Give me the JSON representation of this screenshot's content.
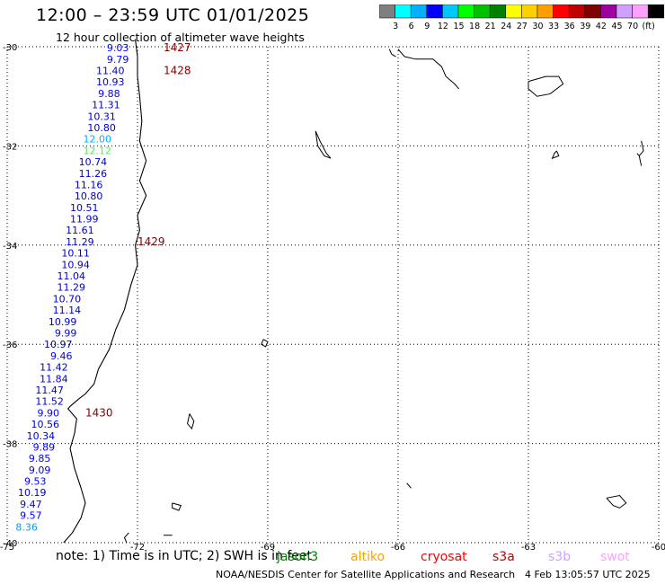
{
  "header": {
    "title": "12:00 – 23:59 UTC 01/01/2025",
    "subtitle": "12 hour collection of altimeter wave heights"
  },
  "color_scale": {
    "colors": [
      "#7f7f7f",
      "#00ffff",
      "#00b0ff",
      "#0000ff",
      "#00c8ff",
      "#00ff00",
      "#00c000",
      "#008000",
      "#ffff00",
      "#ffd000",
      "#ffa000",
      "#ff0000",
      "#c00000",
      "#800000",
      "#a000a0",
      "#d0a0ff",
      "#ffa0ff",
      "#000000"
    ],
    "labels": [
      "3",
      "6",
      "9",
      "12",
      "15",
      "18",
      "21",
      "24",
      "27",
      "30",
      "33",
      "36",
      "39",
      "42",
      "45",
      "70",
      "(ft)"
    ]
  },
  "map": {
    "lat_labels": [
      "-30",
      "-32",
      "-34",
      "-36",
      "-38",
      "-40"
    ],
    "lon_labels": [
      "-75",
      "-72",
      "-69",
      "-66",
      "-63",
      "-60"
    ]
  },
  "chart_data": {
    "type": "scatter",
    "title": "12:00 – 23:59 UTC 01/01/2025",
    "subtitle": "12 hour collection of altimeter wave heights",
    "xlim": [
      -75,
      -60
    ],
    "ylim": [
      -40,
      -30
    ],
    "x_ticks": [
      -75,
      -72,
      -69,
      -66,
      -63,
      -60
    ],
    "y_ticks": [
      -30,
      -32,
      -34,
      -36,
      -38,
      -40
    ],
    "grid": true,
    "units": "ft",
    "points": [
      {
        "lon": -72.2,
        "lat": -30.02,
        "value": "9.03",
        "color": "#0000ff"
      },
      {
        "lon": -72.2,
        "lat": -30.25,
        "value": "9.79",
        "color": "#0000ff"
      },
      {
        "lon": -72.3,
        "lat": -30.48,
        "value": "11.40",
        "color": "#0000cc"
      },
      {
        "lon": -72.3,
        "lat": -30.71,
        "value": "10.93",
        "color": "#0000cc"
      },
      {
        "lon": -72.4,
        "lat": -30.94,
        "value": "9.88",
        "color": "#0000ff"
      },
      {
        "lon": -72.4,
        "lat": -31.17,
        "value": "11.31",
        "color": "#0000cc"
      },
      {
        "lon": -72.5,
        "lat": -31.4,
        "value": "10.31",
        "color": "#0000cc"
      },
      {
        "lon": -72.5,
        "lat": -31.63,
        "value": "10.80",
        "color": "#0000cc"
      },
      {
        "lon": -72.6,
        "lat": -31.86,
        "value": "12.00",
        "color": "#00b0ff"
      },
      {
        "lon": -72.6,
        "lat": -32.09,
        "value": "12.12",
        "color": "#66dd66"
      },
      {
        "lon": -72.7,
        "lat": -32.32,
        "value": "10.74",
        "color": "#0000cc"
      },
      {
        "lon": -72.7,
        "lat": -32.55,
        "value": "11.26",
        "color": "#0000cc"
      },
      {
        "lon": -72.8,
        "lat": -32.78,
        "value": "11.16",
        "color": "#0000cc"
      },
      {
        "lon": -72.8,
        "lat": -33.01,
        "value": "10.80",
        "color": "#0000cc"
      },
      {
        "lon": -72.9,
        "lat": -33.24,
        "value": "10.51",
        "color": "#0000cc"
      },
      {
        "lon": -72.9,
        "lat": -33.47,
        "value": "11.99",
        "color": "#0000cc"
      },
      {
        "lon": -73.0,
        "lat": -33.7,
        "value": "11.61",
        "color": "#0000cc"
      },
      {
        "lon": -73.0,
        "lat": -33.93,
        "value": "11.29",
        "color": "#0000cc"
      },
      {
        "lon": -73.1,
        "lat": -34.16,
        "value": "10.11",
        "color": "#0000cc"
      },
      {
        "lon": -73.1,
        "lat": -34.39,
        "value": "10.94",
        "color": "#0000cc"
      },
      {
        "lon": -73.2,
        "lat": -34.62,
        "value": "11.04",
        "color": "#0000cc"
      },
      {
        "lon": -73.2,
        "lat": -34.85,
        "value": "11.29",
        "color": "#0000cc"
      },
      {
        "lon": -73.3,
        "lat": -35.08,
        "value": "10.70",
        "color": "#0000cc"
      },
      {
        "lon": -73.3,
        "lat": -35.31,
        "value": "11.14",
        "color": "#0000cc"
      },
      {
        "lon": -73.4,
        "lat": -35.54,
        "value": "10.99",
        "color": "#0000cc"
      },
      {
        "lon": -73.4,
        "lat": -35.77,
        "value": "9.99",
        "color": "#0000ff"
      },
      {
        "lon": -73.5,
        "lat": -36.0,
        "value": "10.97",
        "color": "#0000cc"
      },
      {
        "lon": -73.5,
        "lat": -36.23,
        "value": "9.46",
        "color": "#0000ff"
      },
      {
        "lon": -73.6,
        "lat": -36.46,
        "value": "11.42",
        "color": "#0000cc"
      },
      {
        "lon": -73.6,
        "lat": -36.69,
        "value": "11.84",
        "color": "#0000cc"
      },
      {
        "lon": -73.7,
        "lat": -36.92,
        "value": "11.47",
        "color": "#0000cc"
      },
      {
        "lon": -73.7,
        "lat": -37.15,
        "value": "11.52",
        "color": "#0000cc"
      },
      {
        "lon": -73.8,
        "lat": -37.38,
        "value": "9.90",
        "color": "#0000ff"
      },
      {
        "lon": -73.8,
        "lat": -37.61,
        "value": "10.56",
        "color": "#0000cc"
      },
      {
        "lon": -73.9,
        "lat": -37.84,
        "value": "10.34",
        "color": "#0000cc"
      },
      {
        "lon": -73.9,
        "lat": -38.07,
        "value": "9.89",
        "color": "#0000ff"
      },
      {
        "lon": -74.0,
        "lat": -38.3,
        "value": "9.85",
        "color": "#0000ff"
      },
      {
        "lon": -74.0,
        "lat": -38.53,
        "value": "9.09",
        "color": "#0000ff"
      },
      {
        "lon": -74.1,
        "lat": -38.76,
        "value": "9.53",
        "color": "#0000ff"
      },
      {
        "lon": -74.1,
        "lat": -38.99,
        "value": "10.19",
        "color": "#0000cc"
      },
      {
        "lon": -74.2,
        "lat": -39.22,
        "value": "9.47",
        "color": "#0000ff"
      },
      {
        "lon": -74.2,
        "lat": -39.45,
        "value": "9.57",
        "color": "#0000ff"
      },
      {
        "lon": -74.3,
        "lat": -39.68,
        "value": "8.36",
        "color": "#00a0e0"
      }
    ],
    "time_labels": [
      {
        "lon": -71.4,
        "lat": -30.02,
        "text": "1427"
      },
      {
        "lon": -71.4,
        "lat": -30.48,
        "text": "1428"
      },
      {
        "lon": -72.0,
        "lat": -33.93,
        "text": "1429"
      },
      {
        "lon": -73.2,
        "lat": -37.38,
        "text": "1430"
      }
    ]
  },
  "footer": {
    "note": "note:  1) Time is in UTC; 2) SWH is in feet",
    "satellites": [
      {
        "name": "jason3",
        "color": "#008000"
      },
      {
        "name": "altiko",
        "color": "#ffa000"
      },
      {
        "name": "cryosat",
        "color": "#ff0000"
      },
      {
        "name": "s3a",
        "color": "#c00000"
      },
      {
        "name": "s3b",
        "color": "#d0a0ff"
      },
      {
        "name": "swot",
        "color": "#ffa0ff"
      }
    ],
    "credit": "NOAA/NESDIS Center for Satellite Applications and Research",
    "timestamp": "4 Feb 13:05:57 UTC 2025"
  }
}
